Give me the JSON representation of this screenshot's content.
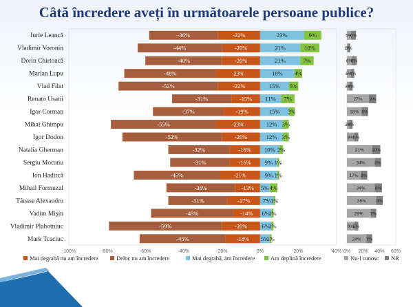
{
  "title": "Câtă încredere aveți în următoarele persoane publice?",
  "colors": {
    "mai_degraba_nu": "#c8561b",
    "deloc_nu": "#a55f3e",
    "mai_degraba_da": "#7ec2e0",
    "deplina": "#84c341",
    "nu_l_cunosc": "#a6a6a6",
    "nr": "#7f7f7f",
    "title": "#1f3b78"
  },
  "chart_data": [
    {
      "type": "bar",
      "orientation": "horizontal",
      "stacked": "diverging",
      "categories": [
        "Iurie Leancă",
        "Vladimir Voronin",
        "Dorin Chirtoacă",
        "Marian Lupu",
        "Vlad Filat",
        "Renato Usatii",
        "Igor Corman",
        "Mihai Ghimpu",
        "Igor Dodon",
        "Natalia Gherman",
        "Sergiu Mocanu",
        "Ion Hadircă",
        "Mihail Formuzal",
        "Tănase Alexandru",
        "Vadim Mişin",
        "Vladimir Plahotniuc",
        "Mark Tcaciuc"
      ],
      "series": [
        {
          "name": "Mai degrabă nu am încredere",
          "values": [
            -36,
            -44,
            -40,
            -48,
            -52,
            -31,
            -37,
            -55,
            -52,
            -32,
            -31,
            -45,
            -36,
            -31,
            -43,
            -59,
            -45
          ],
          "labels": [
            "-36%",
            "-44%",
            "-40%",
            "-48%",
            "-52%",
            "-31%",
            "-37%",
            "-55%",
            "-52%",
            "-32%",
            "-31%",
            "-45%",
            "-36%",
            "-31%",
            "-43%",
            "-59%",
            "-45%"
          ]
        },
        {
          "name": "Deloc nu am încredere",
          "values": [
            -22,
            -20,
            -20,
            -23,
            -22,
            -15,
            -19,
            -23,
            -20,
            -16,
            -16,
            -21,
            -13,
            -17,
            -14,
            -20,
            -18
          ],
          "labels": [
            "-22%",
            "-20%",
            "-20%",
            "-23%",
            "-22%",
            "-15%",
            "-19%",
            "-23%",
            "-20%",
            "-16%",
            "-16%",
            "-21%",
            "-13%",
            "-17%",
            "-14%",
            "-20%",
            "-18%"
          ]
        },
        {
          "name": "Mai degrabă, am încredere",
          "values": [
            23,
            21,
            21,
            18,
            15,
            11,
            15,
            12,
            12,
            10,
            9,
            9,
            5,
            7,
            6,
            6,
            5
          ],
          "labels": [
            "23%",
            "21%",
            "21%",
            "18%",
            "15%",
            "11%",
            "15%",
            "12%",
            "12%",
            "10%",
            "9%",
            "9%",
            "5%",
            "7%",
            "6%",
            "6%",
            "5%"
          ]
        },
        {
          "name": "Am deplină încredere",
          "values": [
            9,
            10,
            7,
            4,
            5,
            7,
            3,
            3,
            3,
            2,
            1,
            1,
            4,
            1,
            1,
            1,
            1
          ],
          "labels": [
            "9%",
            "10%",
            "7%",
            "4%",
            "5%",
            "7%",
            "3%",
            "3%",
            "3%",
            "2%",
            "1%",
            "1%",
            "4%",
            "1%",
            "1%",
            "1%",
            "1%"
          ]
        }
      ],
      "xlim": [
        -100,
        40
      ],
      "x_ticks": [
        "-100%",
        "-80%",
        "-60%",
        "-40%",
        "-20%",
        "0%",
        "20%",
        "40%"
      ],
      "legend_placement": "bottom"
    },
    {
      "type": "bar",
      "orientation": "horizontal",
      "stacked": "side-by-side",
      "categories": [
        "Iurie Leancă",
        "Vladimir Voronin",
        "Dorin Chirtoacă",
        "Marian Lupu",
        "Vlad Filat",
        "Renato Usatii",
        "Igor Corman",
        "Mihai Ghimpu",
        "Igor Dodon",
        "Natalia Gherman",
        "Sergiu Mocanu",
        "Ion Hadircă",
        "Mihail Formuzal",
        "Tănase Alexandru",
        "Vadim Mişin",
        "Vladimir Plahotniuc",
        "Mark Tcaciuc"
      ],
      "series": [
        {
          "name": "Nu-l cunosc",
          "values": [
            5,
            1,
            6,
            5,
            3,
            27,
            18,
            3,
            9,
            31,
            34,
            17,
            34,
            36,
            29,
            9,
            24
          ],
          "labels": [
            "5%",
            "1%",
            "6%",
            "5%",
            "3%",
            "27%",
            "18%",
            "3%",
            "9%",
            "31%",
            "34%",
            "17%",
            "34%",
            "36%",
            "29%",
            "9%",
            "24%"
          ]
        },
        {
          "name": "NR",
          "values": [
            6,
            3,
            6,
            4,
            4,
            9,
            8,
            4,
            5,
            10,
            8,
            8,
            9,
            8,
            7,
            5,
            7
          ],
          "labels": [
            "6%",
            "3%",
            "6%",
            "4%",
            "4%",
            "9%",
            "8%",
            "4%",
            "5%",
            "10%",
            "8%",
            "8%",
            "9%",
            "8%",
            "7%",
            "5%",
            "7%"
          ]
        }
      ],
      "xlim": [
        0,
        60
      ],
      "x_ticks": [
        "0%",
        "20%",
        "40%",
        "60%"
      ],
      "legend_placement": "bottom"
    }
  ]
}
